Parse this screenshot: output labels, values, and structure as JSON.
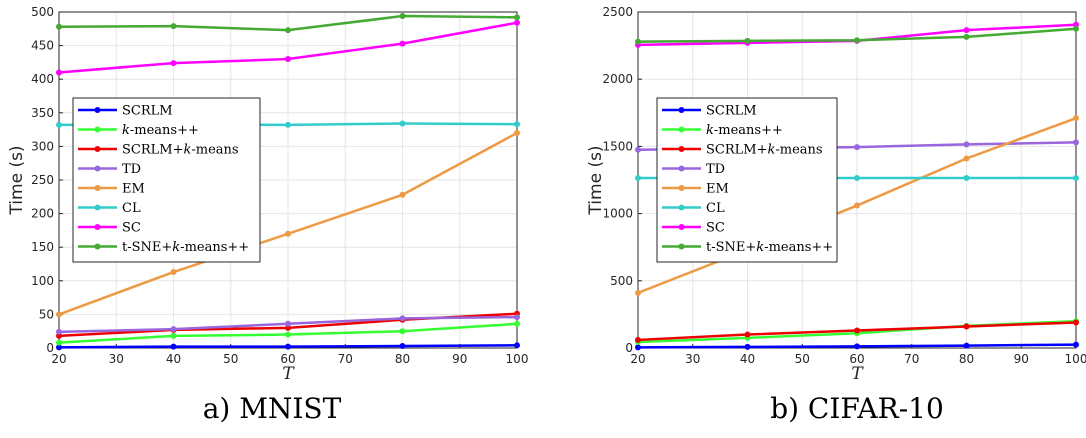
{
  "chart_data": [
    {
      "type": "line",
      "caption": "a) MNIST",
      "xlabel": "T",
      "ylabel": "Time (s)",
      "xlim": [
        20,
        100
      ],
      "ylim": [
        0,
        500
      ],
      "xticks": [
        "20",
        "30",
        "40",
        "50",
        "60",
        "70",
        "80",
        "90",
        "100"
      ],
      "yticks": [
        "0",
        "50",
        "100",
        "150",
        "200",
        "250",
        "300",
        "350",
        "400",
        "450",
        "500"
      ],
      "grid": true,
      "legend_position": "center-left",
      "x": [
        20,
        40,
        60,
        80,
        100
      ],
      "series": [
        {
          "name": "SCRLM",
          "color": "#0000ff",
          "values": [
            1,
            2,
            2,
            3,
            4
          ]
        },
        {
          "name": "k-means++",
          "color": "#33ff33",
          "values": [
            8,
            18,
            20,
            25,
            36
          ]
        },
        {
          "name": "SCRLM+k-means",
          "color": "#ee0000",
          "values": [
            18,
            27,
            30,
            42,
            51
          ]
        },
        {
          "name": "TD",
          "color": "#9966dd",
          "values": [
            24,
            28,
            36,
            44,
            46
          ]
        },
        {
          "name": "EM",
          "color": "#ee9944",
          "values": [
            50,
            113,
            170,
            228,
            320
          ]
        },
        {
          "name": "CL",
          "color": "#33cccc",
          "values": [
            332,
            333,
            332,
            334,
            333
          ]
        },
        {
          "name": "SC",
          "color": "#ff00ff",
          "values": [
            410,
            424,
            430,
            453,
            484
          ]
        },
        {
          "name": "t-SNE+k-means++",
          "color": "#44aa33",
          "values": [
            478,
            479,
            473,
            494,
            492
          ]
        }
      ]
    },
    {
      "type": "line",
      "caption": "b) CIFAR-10",
      "xlabel": "T",
      "ylabel": "Time (s)",
      "xlim": [
        20,
        100
      ],
      "ylim": [
        0,
        2500
      ],
      "xticks": [
        "20",
        "30",
        "40",
        "50",
        "60",
        "70",
        "80",
        "90",
        "100"
      ],
      "yticks": [
        "0",
        "500",
        "1000",
        "1500",
        "2000",
        "2500"
      ],
      "grid": true,
      "legend_position": "center-left",
      "x": [
        20,
        40,
        60,
        80,
        100
      ],
      "series": [
        {
          "name": "SCRLM",
          "color": "#0000ff",
          "values": [
            5,
            8,
            12,
            18,
            25
          ]
        },
        {
          "name": "k-means++",
          "color": "#33ff33",
          "values": [
            45,
            75,
            110,
            165,
            200
          ]
        },
        {
          "name": "SCRLM+k-means",
          "color": "#ee0000",
          "values": [
            60,
            100,
            130,
            160,
            190
          ]
        },
        {
          "name": "TD",
          "color": "#9966dd",
          "values": [
            1475,
            1485,
            1495,
            1515,
            1530
          ]
        },
        {
          "name": "EM",
          "color": "#ee9944",
          "values": [
            410,
            730,
            1060,
            1410,
            1710
          ]
        },
        {
          "name": "CL",
          "color": "#33cccc",
          "values": [
            1265,
            1265,
            1265,
            1265,
            1265
          ]
        },
        {
          "name": "SC",
          "color": "#ff00ff",
          "values": [
            2255,
            2270,
            2285,
            2365,
            2405
          ]
        },
        {
          "name": "t-SNE+k-means++",
          "color": "#44aa33",
          "values": [
            2280,
            2285,
            2290,
            2315,
            2375
          ]
        }
      ]
    }
  ]
}
